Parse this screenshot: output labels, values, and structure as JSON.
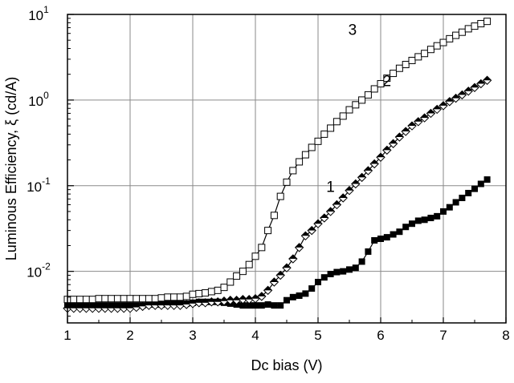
{
  "chart_data": {
    "type": "scatter",
    "title": "",
    "xlabel": "Dc bias (V)",
    "ylabel": "Luminous Efficiency, ξ (cd/A)",
    "xlim": [
      1,
      8
    ],
    "ylim": [
      0.0025,
      10
    ],
    "yscale": "log",
    "grid": true,
    "x_ticks": [
      {
        "value": 1,
        "label": "1"
      },
      {
        "value": 2,
        "label": "2"
      },
      {
        "value": 3,
        "label": "3"
      },
      {
        "value": 4,
        "label": "4"
      },
      {
        "value": 5,
        "label": "5"
      },
      {
        "value": 6,
        "label": "6"
      },
      {
        "value": 7,
        "label": "7"
      },
      {
        "value": 8,
        "label": "8"
      }
    ],
    "y_ticks": [
      {
        "value": 0.01,
        "base": "10",
        "exp": "-2"
      },
      {
        "value": 0.1,
        "base": "10",
        "exp": "-1"
      },
      {
        "value": 1,
        "base": "10",
        "exp": "0"
      },
      {
        "value": 10,
        "base": "10",
        "exp": "1"
      }
    ],
    "series": [
      {
        "name": "1",
        "marker": "filled-square",
        "color": "#000000",
        "label_at": [
          5.2,
          0.085
        ],
        "x": [
          1.0,
          1.1,
          1.2,
          1.3,
          1.4,
          1.5,
          1.6,
          1.7,
          1.8,
          1.9,
          2.0,
          2.1,
          2.2,
          2.3,
          2.4,
          2.5,
          2.6,
          2.7,
          2.8,
          2.9,
          3.0,
          3.1,
          3.2,
          3.3,
          3.4,
          3.5,
          3.6,
          3.7,
          3.8,
          3.9,
          4.0,
          4.1,
          4.2,
          4.3,
          4.4,
          4.5,
          4.6,
          4.7,
          4.8,
          4.9,
          5.0,
          5.1,
          5.2,
          5.3,
          5.4,
          5.5,
          5.6,
          5.7,
          5.8,
          5.9,
          6.0,
          6.1,
          6.2,
          6.3,
          6.4,
          6.5,
          6.6,
          6.7,
          6.8,
          6.9,
          7.0,
          7.1,
          7.2,
          7.3,
          7.4,
          7.5,
          7.6,
          7.7
        ],
        "y": [
          0.004,
          0.004,
          0.004,
          0.004,
          0.004,
          0.004,
          0.004,
          0.004,
          0.004,
          0.004,
          0.004,
          0.004,
          0.004,
          0.0041,
          0.0041,
          0.0041,
          0.0042,
          0.0042,
          0.0042,
          0.0042,
          0.0043,
          0.0044,
          0.0044,
          0.0044,
          0.0044,
          0.0043,
          0.0042,
          0.0041,
          0.004,
          0.004,
          0.004,
          0.004,
          0.0041,
          0.004,
          0.004,
          0.0046,
          0.005,
          0.0052,
          0.0055,
          0.0063,
          0.0075,
          0.0085,
          0.0093,
          0.0098,
          0.01,
          0.0105,
          0.011,
          0.013,
          0.017,
          0.023,
          0.024,
          0.025,
          0.027,
          0.029,
          0.033,
          0.036,
          0.039,
          0.04,
          0.042,
          0.044,
          0.05,
          0.056,
          0.064,
          0.072,
          0.082,
          0.092,
          0.105,
          0.118
        ]
      },
      {
        "name": "2",
        "marker": "half-filled-diamond",
        "color": "#000000",
        "label_at": [
          6.1,
          1.45
        ],
        "x": [
          1.0,
          1.1,
          1.2,
          1.3,
          1.4,
          1.5,
          1.6,
          1.7,
          1.8,
          1.9,
          2.0,
          2.1,
          2.2,
          2.3,
          2.4,
          2.5,
          2.6,
          2.7,
          2.8,
          2.9,
          3.0,
          3.1,
          3.2,
          3.3,
          3.4,
          3.5,
          3.6,
          3.7,
          3.8,
          3.9,
          4.0,
          4.1,
          4.2,
          4.3,
          4.4,
          4.5,
          4.6,
          4.7,
          4.8,
          4.9,
          5.0,
          5.1,
          5.2,
          5.3,
          5.4,
          5.5,
          5.6,
          5.7,
          5.8,
          5.9,
          6.0,
          6.1,
          6.2,
          6.3,
          6.4,
          6.5,
          6.6,
          6.7,
          6.8,
          6.9,
          7.0,
          7.1,
          7.2,
          7.3,
          7.4,
          7.5,
          7.6,
          7.7
        ],
        "y": [
          0.0037,
          0.0037,
          0.0037,
          0.0037,
          0.0037,
          0.0037,
          0.0037,
          0.0037,
          0.0037,
          0.0037,
          0.0037,
          0.0038,
          0.0039,
          0.004,
          0.004,
          0.004,
          0.004,
          0.004,
          0.004,
          0.0041,
          0.0042,
          0.0043,
          0.0043,
          0.0044,
          0.0044,
          0.0045,
          0.0046,
          0.0046,
          0.0047,
          0.0047,
          0.0048,
          0.0051,
          0.006,
          0.0075,
          0.009,
          0.011,
          0.014,
          0.019,
          0.026,
          0.03,
          0.036,
          0.042,
          0.05,
          0.06,
          0.072,
          0.088,
          0.105,
          0.125,
          0.15,
          0.18,
          0.215,
          0.26,
          0.31,
          0.37,
          0.43,
          0.5,
          0.56,
          0.62,
          0.7,
          0.78,
          0.86,
          0.96,
          1.05,
          1.15,
          1.27,
          1.4,
          1.55,
          1.7
        ]
      },
      {
        "name": "3",
        "marker": "open-square",
        "color": "#000000",
        "label_at": [
          5.55,
          5.8
        ],
        "x": [
          1.0,
          1.1,
          1.2,
          1.3,
          1.4,
          1.5,
          1.6,
          1.7,
          1.8,
          1.9,
          2.0,
          2.1,
          2.2,
          2.3,
          2.4,
          2.5,
          2.6,
          2.7,
          2.8,
          2.9,
          3.0,
          3.1,
          3.2,
          3.3,
          3.4,
          3.5,
          3.6,
          3.7,
          3.8,
          3.9,
          4.0,
          4.1,
          4.2,
          4.3,
          4.4,
          4.5,
          4.6,
          4.7,
          4.8,
          4.9,
          5.0,
          5.1,
          5.2,
          5.3,
          5.4,
          5.5,
          5.6,
          5.7,
          5.8,
          5.9,
          6.0,
          6.1,
          6.2,
          6.3,
          6.4,
          6.5,
          6.6,
          6.7,
          6.8,
          6.9,
          7.0,
          7.1,
          7.2,
          7.3,
          7.4,
          7.5,
          7.6,
          7.7
        ],
        "y": [
          0.0047,
          0.0047,
          0.0047,
          0.0047,
          0.0047,
          0.0048,
          0.0048,
          0.0048,
          0.0048,
          0.0048,
          0.0048,
          0.0048,
          0.0048,
          0.0048,
          0.0048,
          0.0049,
          0.005,
          0.005,
          0.005,
          0.0051,
          0.0054,
          0.0055,
          0.0056,
          0.0058,
          0.006,
          0.0065,
          0.0075,
          0.0088,
          0.01,
          0.012,
          0.015,
          0.019,
          0.03,
          0.045,
          0.075,
          0.11,
          0.15,
          0.19,
          0.23,
          0.28,
          0.33,
          0.4,
          0.47,
          0.56,
          0.65,
          0.77,
          0.88,
          1.0,
          1.15,
          1.35,
          1.55,
          1.8,
          2.05,
          2.35,
          2.6,
          2.9,
          3.2,
          3.5,
          3.9,
          4.3,
          4.7,
          5.2,
          5.7,
          6.2,
          6.8,
          7.3,
          7.8,
          8.3
        ]
      }
    ]
  }
}
